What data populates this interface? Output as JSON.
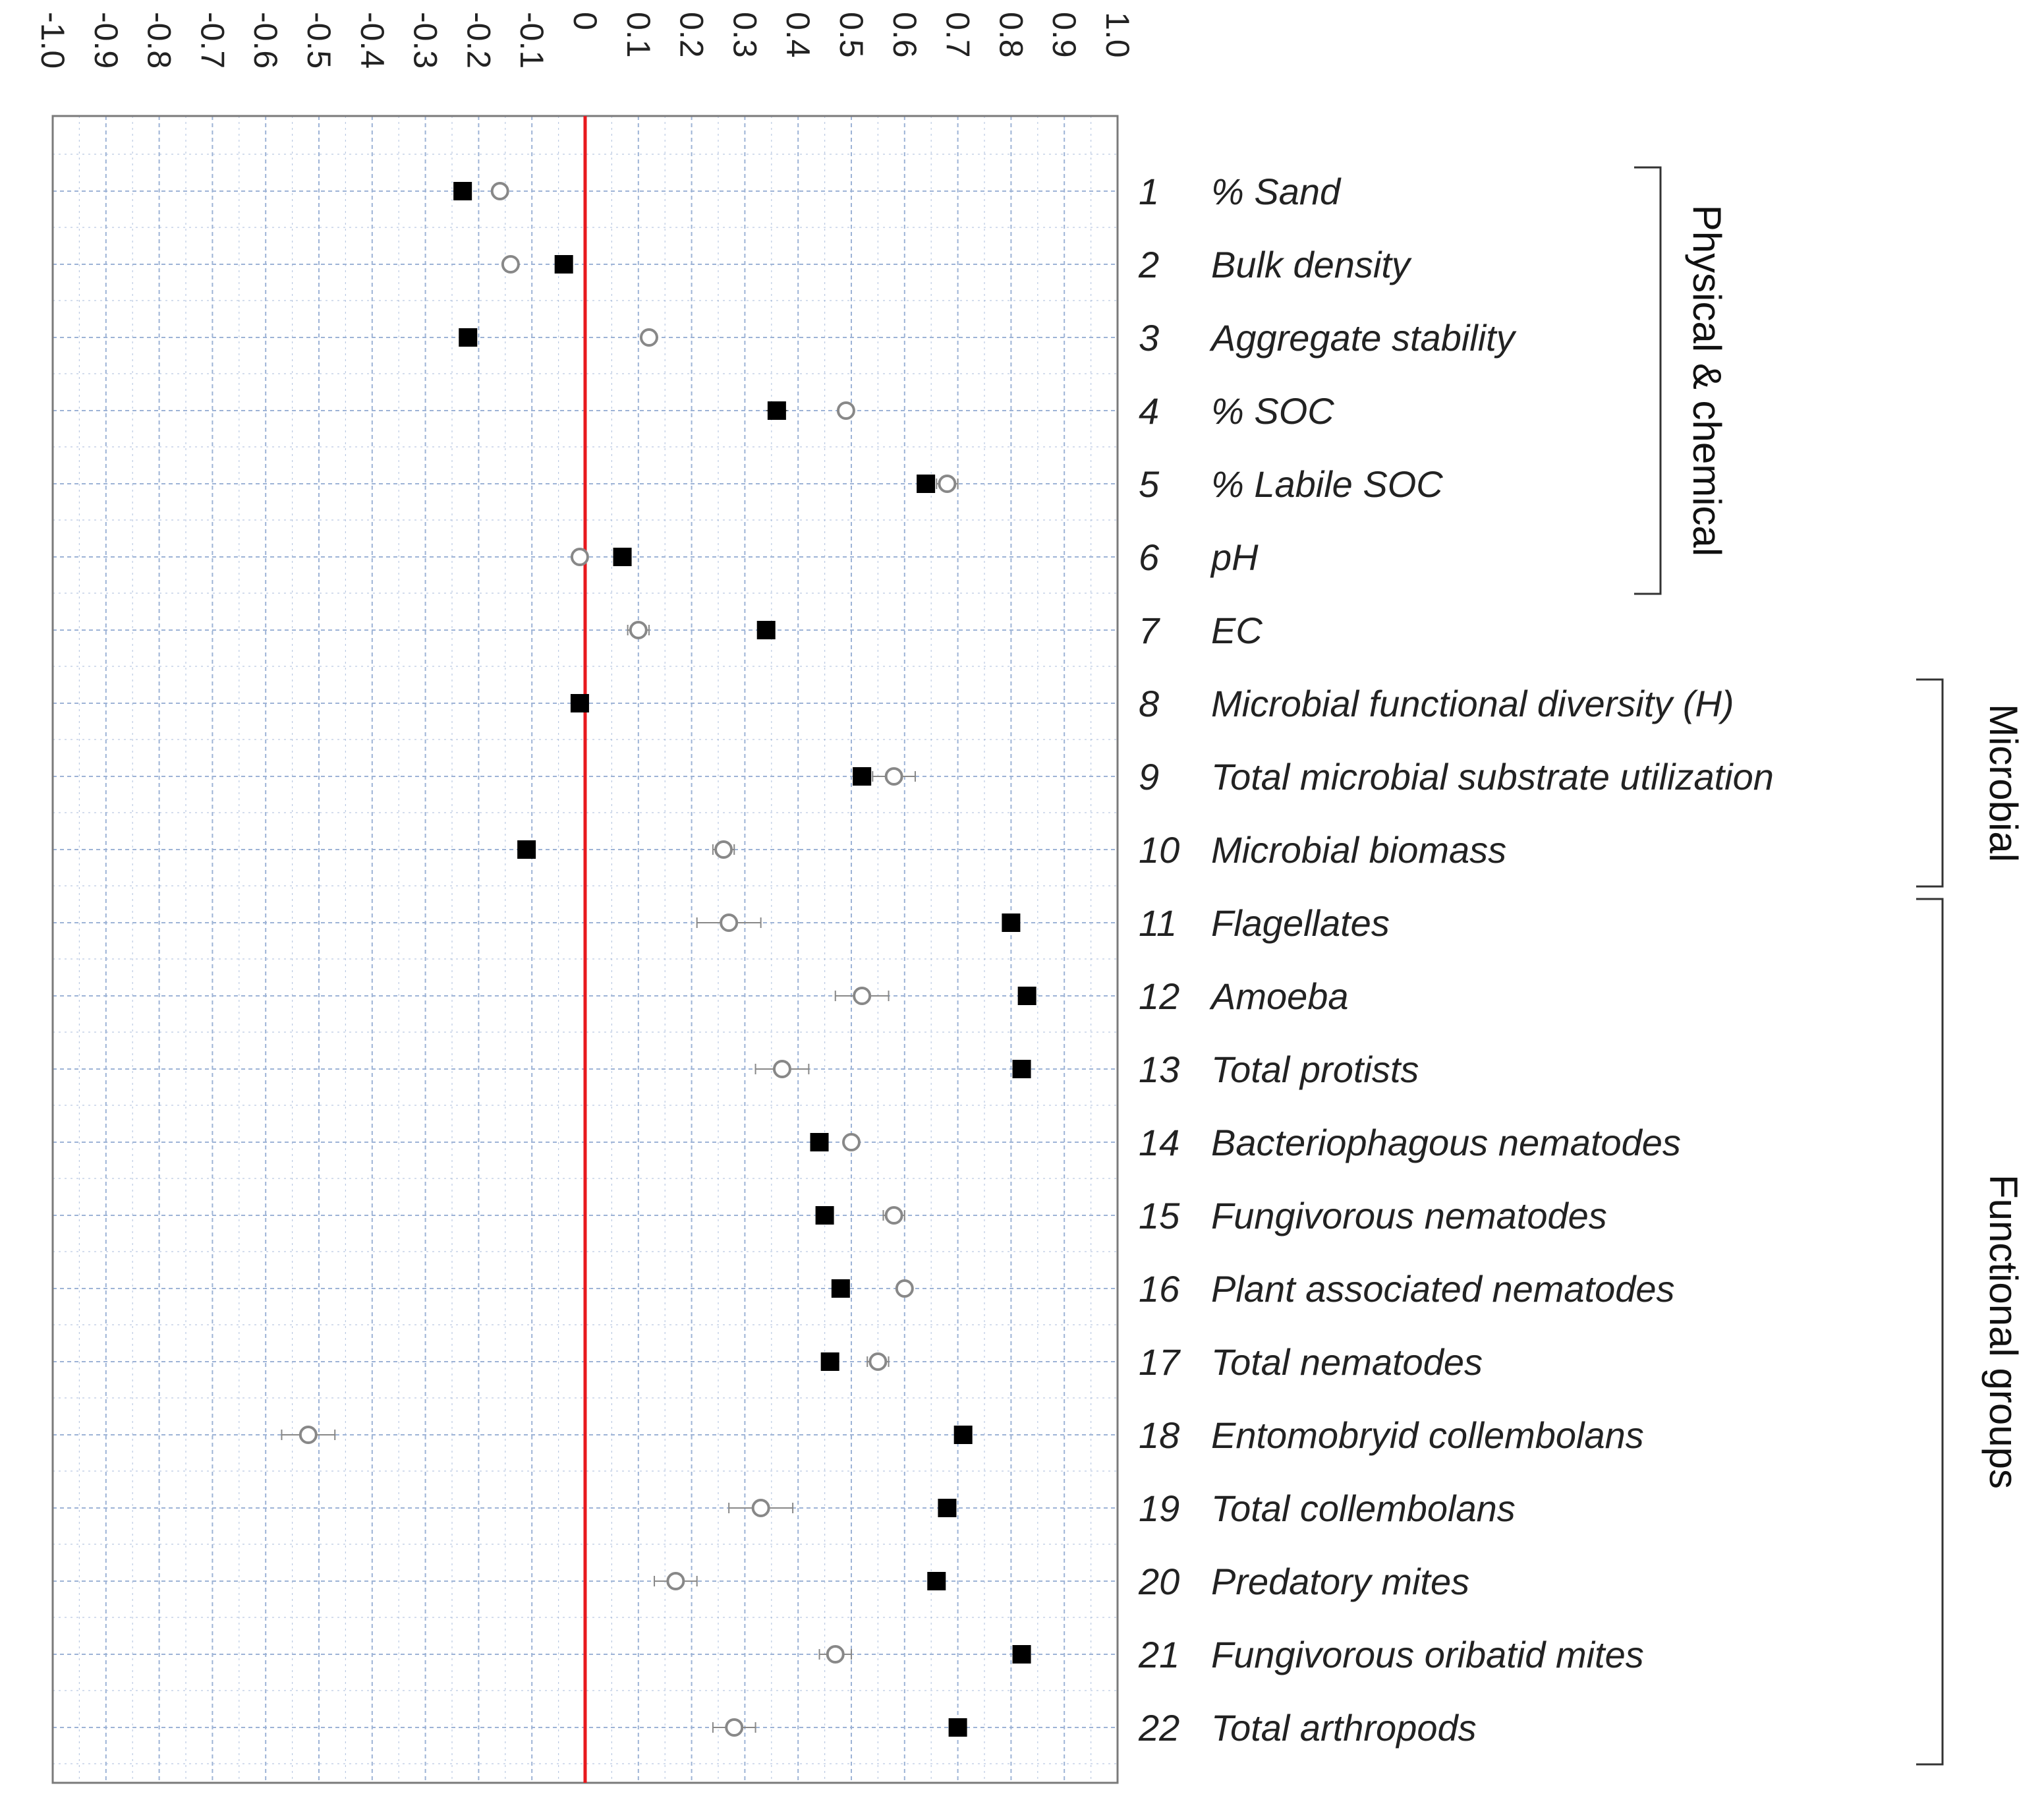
{
  "chart_data": {
    "type": "scatter",
    "orientation": "horizontal",
    "xlim": [
      -1.0,
      1.0
    ],
    "x_ticks": [
      -1.0,
      -0.9,
      -0.8,
      -0.7,
      -0.6,
      -0.5,
      -0.4,
      -0.3,
      -0.2,
      -0.1,
      0,
      0.1,
      0.2,
      0.3,
      0.4,
      0.5,
      0.6,
      0.7,
      0.8,
      0.9,
      1.0
    ],
    "tick_labels": [
      "-1.0",
      "-0.9",
      "-0.8",
      "-0.7",
      "-0.6",
      "-0.5",
      "-0.4",
      "-0.3",
      "-0.2",
      "-0.1",
      "0",
      "0.1",
      "0.2",
      "0.3",
      "0.4",
      "0.5",
      "0.6",
      "0.7",
      "0.8",
      "0.9",
      "1.0"
    ],
    "tick_label_orientation": "rotated-90",
    "reference_line": {
      "x": 0,
      "color": "#e8191e"
    },
    "grid": true,
    "grid_color": "#9db3d6",
    "series": [
      {
        "name": "filled-square",
        "marker": "square",
        "color": "#000000",
        "values": [
          -0.23,
          -0.04,
          -0.22,
          0.36,
          0.64,
          0.07,
          0.34,
          -0.01,
          0.52,
          -0.11,
          0.8,
          0.83,
          0.82,
          0.44,
          0.45,
          0.48,
          0.46,
          0.71,
          0.68,
          0.66,
          0.82,
          0.7
        ],
        "errors": [
          0,
          0,
          0,
          0.02,
          0,
          0,
          0,
          0,
          0,
          0,
          0,
          0,
          0,
          0,
          0,
          0,
          0,
          0,
          0,
          0,
          0,
          0
        ]
      },
      {
        "name": "open-circle",
        "marker": "circle-open",
        "color": "#888888",
        "values": [
          -0.16,
          -0.14,
          0.12,
          0.49,
          0.68,
          -0.01,
          0.1,
          -0.01,
          0.58,
          0.26,
          0.27,
          0.52,
          0.37,
          0.5,
          0.58,
          0.6,
          0.55,
          -0.52,
          0.33,
          0.17,
          0.47,
          0.28
        ],
        "errors": [
          0,
          0.01,
          0,
          0,
          0.02,
          0,
          0.02,
          0,
          0.04,
          0.02,
          0.06,
          0.05,
          0.05,
          0.01,
          0.02,
          0,
          0.02,
          0.05,
          0.06,
          0.04,
          0.03,
          0.04
        ]
      }
    ],
    "rows": [
      {
        "num": "1",
        "label": "% Sand"
      },
      {
        "num": "2",
        "label": "Bulk density"
      },
      {
        "num": "3",
        "label": "Aggregate stability"
      },
      {
        "num": "4",
        "label": "% SOC"
      },
      {
        "num": "5",
        "label": "% Labile SOC"
      },
      {
        "num": "6",
        "label": "pH"
      },
      {
        "num": "7",
        "label": "EC"
      },
      {
        "num": "8",
        "label": "Microbial functional diversity (H)"
      },
      {
        "num": "9",
        "label": "Total microbial substrate utilization"
      },
      {
        "num": "10",
        "label": "Microbial biomass"
      },
      {
        "num": "11",
        "label": "Flagellates"
      },
      {
        "num": "12",
        "label": "Amoeba"
      },
      {
        "num": "13",
        "label": "Total protists"
      },
      {
        "num": "14",
        "label": "Bacteriophagous nematodes"
      },
      {
        "num": "15",
        "label": "Fungivorous nematodes"
      },
      {
        "num": "16",
        "label": "Plant associated nematodes"
      },
      {
        "num": "17",
        "label": "Total nematodes"
      },
      {
        "num": "18",
        "label": "Entomobryid collembolans"
      },
      {
        "num": "19",
        "label": "Total collembolans"
      },
      {
        "num": "20",
        "label": "Predatory mites"
      },
      {
        "num": "21",
        "label": "Fungivorous oribatid mites"
      },
      {
        "num": "22",
        "label": "Total arthropods"
      }
    ],
    "groups": [
      {
        "label": "Physical & chemical",
        "from_row": 1,
        "to_row": 6
      },
      {
        "label": "Microbial",
        "from_row": 8,
        "to_row": 10
      },
      {
        "label": "Functional groups",
        "from_row": 11,
        "to_row": 22
      }
    ]
  }
}
